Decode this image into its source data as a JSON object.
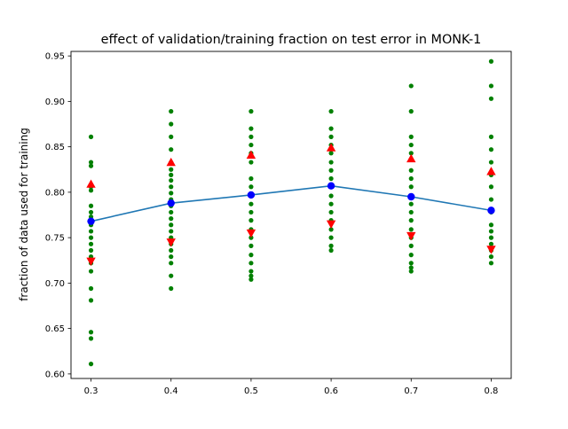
{
  "chart_data": {
    "type": "scatter",
    "title": "effect of validation/training fraction on test error in MONK-1",
    "xlabel": "",
    "ylabel": "fraction of data used for training",
    "xlim": [
      0.275,
      0.825
    ],
    "ylim": [
      0.595,
      0.955
    ],
    "grid": false,
    "legend": "none",
    "x_ticks": [
      0.3,
      0.4,
      0.5,
      0.6,
      0.7,
      0.8
    ],
    "x_tick_labels": [
      "0.3",
      "0.4",
      "0.5",
      "0.6",
      "0.7",
      "0.8"
    ],
    "y_ticks": [
      0.6,
      0.65,
      0.7,
      0.75,
      0.8,
      0.85,
      0.9,
      0.95
    ],
    "y_tick_labels": [
      "0.60",
      "0.65",
      "0.70",
      "0.75",
      "0.80",
      "0.85",
      "0.90",
      "0.95"
    ],
    "colors": {
      "trials": "#008000",
      "mean": "#1f77b4",
      "mean_marker": "#0000ff",
      "band": "#ff0000"
    },
    "series": [
      {
        "role": "trials",
        "marker": "dot",
        "points": [
          [
            0.3,
            0.861
          ],
          [
            0.3,
            0.833
          ],
          [
            0.3,
            0.829
          ],
          [
            0.3,
            0.806
          ],
          [
            0.3,
            0.802
          ],
          [
            0.3,
            0.785
          ],
          [
            0.3,
            0.778
          ],
          [
            0.3,
            0.773
          ],
          [
            0.3,
            0.764
          ],
          [
            0.3,
            0.757
          ],
          [
            0.3,
            0.75
          ],
          [
            0.3,
            0.743
          ],
          [
            0.3,
            0.736
          ],
          [
            0.3,
            0.729
          ],
          [
            0.3,
            0.722
          ],
          [
            0.3,
            0.713
          ],
          [
            0.3,
            0.694
          ],
          [
            0.3,
            0.681
          ],
          [
            0.3,
            0.646
          ],
          [
            0.3,
            0.639
          ],
          [
            0.3,
            0.611
          ],
          [
            0.4,
            0.889
          ],
          [
            0.4,
            0.875
          ],
          [
            0.4,
            0.861
          ],
          [
            0.4,
            0.847
          ],
          [
            0.4,
            0.833
          ],
          [
            0.4,
            0.825
          ],
          [
            0.4,
            0.819
          ],
          [
            0.4,
            0.813
          ],
          [
            0.4,
            0.806
          ],
          [
            0.4,
            0.799
          ],
          [
            0.4,
            0.792
          ],
          [
            0.4,
            0.785
          ],
          [
            0.4,
            0.778
          ],
          [
            0.4,
            0.771
          ],
          [
            0.4,
            0.764
          ],
          [
            0.4,
            0.757
          ],
          [
            0.4,
            0.75
          ],
          [
            0.4,
            0.743
          ],
          [
            0.4,
            0.736
          ],
          [
            0.4,
            0.729
          ],
          [
            0.4,
            0.722
          ],
          [
            0.4,
            0.708
          ],
          [
            0.4,
            0.694
          ],
          [
            0.5,
            0.889
          ],
          [
            0.5,
            0.87
          ],
          [
            0.5,
            0.861
          ],
          [
            0.5,
            0.852
          ],
          [
            0.5,
            0.843
          ],
          [
            0.5,
            0.833
          ],
          [
            0.5,
            0.815
          ],
          [
            0.5,
            0.806
          ],
          [
            0.5,
            0.796
          ],
          [
            0.5,
            0.787
          ],
          [
            0.5,
            0.778
          ],
          [
            0.5,
            0.769
          ],
          [
            0.5,
            0.759
          ],
          [
            0.5,
            0.75
          ],
          [
            0.5,
            0.741
          ],
          [
            0.5,
            0.731
          ],
          [
            0.5,
            0.722
          ],
          [
            0.5,
            0.713
          ],
          [
            0.5,
            0.708
          ],
          [
            0.5,
            0.704
          ],
          [
            0.6,
            0.889
          ],
          [
            0.6,
            0.87
          ],
          [
            0.6,
            0.861
          ],
          [
            0.6,
            0.852
          ],
          [
            0.6,
            0.843
          ],
          [
            0.6,
            0.833
          ],
          [
            0.6,
            0.824
          ],
          [
            0.6,
            0.815
          ],
          [
            0.6,
            0.806
          ],
          [
            0.6,
            0.796
          ],
          [
            0.6,
            0.787
          ],
          [
            0.6,
            0.778
          ],
          [
            0.6,
            0.769
          ],
          [
            0.6,
            0.759
          ],
          [
            0.6,
            0.75
          ],
          [
            0.6,
            0.741
          ],
          [
            0.6,
            0.736
          ],
          [
            0.7,
            0.917
          ],
          [
            0.7,
            0.889
          ],
          [
            0.7,
            0.861
          ],
          [
            0.7,
            0.852
          ],
          [
            0.7,
            0.843
          ],
          [
            0.7,
            0.824
          ],
          [
            0.7,
            0.815
          ],
          [
            0.7,
            0.806
          ],
          [
            0.7,
            0.796
          ],
          [
            0.7,
            0.787
          ],
          [
            0.7,
            0.778
          ],
          [
            0.7,
            0.769
          ],
          [
            0.7,
            0.759
          ],
          [
            0.7,
            0.75
          ],
          [
            0.7,
            0.741
          ],
          [
            0.7,
            0.731
          ],
          [
            0.7,
            0.722
          ],
          [
            0.7,
            0.717
          ],
          [
            0.7,
            0.713
          ],
          [
            0.8,
            0.944
          ],
          [
            0.8,
            0.917
          ],
          [
            0.8,
            0.903
          ],
          [
            0.8,
            0.861
          ],
          [
            0.8,
            0.847
          ],
          [
            0.8,
            0.833
          ],
          [
            0.8,
            0.819
          ],
          [
            0.8,
            0.806
          ],
          [
            0.8,
            0.792
          ],
          [
            0.8,
            0.778
          ],
          [
            0.8,
            0.764
          ],
          [
            0.8,
            0.757
          ],
          [
            0.8,
            0.75
          ],
          [
            0.8,
            0.743
          ],
          [
            0.8,
            0.736
          ],
          [
            0.8,
            0.729
          ],
          [
            0.8,
            0.722
          ]
        ]
      },
      {
        "role": "mean",
        "marker": "circle-line",
        "x": [
          0.3,
          0.4,
          0.5,
          0.6,
          0.7,
          0.8
        ],
        "y": [
          0.768,
          0.788,
          0.797,
          0.807,
          0.795,
          0.78
        ]
      },
      {
        "role": "upper",
        "marker": "triangle-up",
        "x": [
          0.3,
          0.4,
          0.5,
          0.6,
          0.7,
          0.8
        ],
        "y": [
          0.809,
          0.833,
          0.841,
          0.849,
          0.837,
          0.823
        ]
      },
      {
        "role": "lower",
        "marker": "triangle-down",
        "x": [
          0.3,
          0.4,
          0.5,
          0.6,
          0.7,
          0.8
        ],
        "y": [
          0.724,
          0.745,
          0.755,
          0.765,
          0.752,
          0.737
        ]
      }
    ]
  }
}
